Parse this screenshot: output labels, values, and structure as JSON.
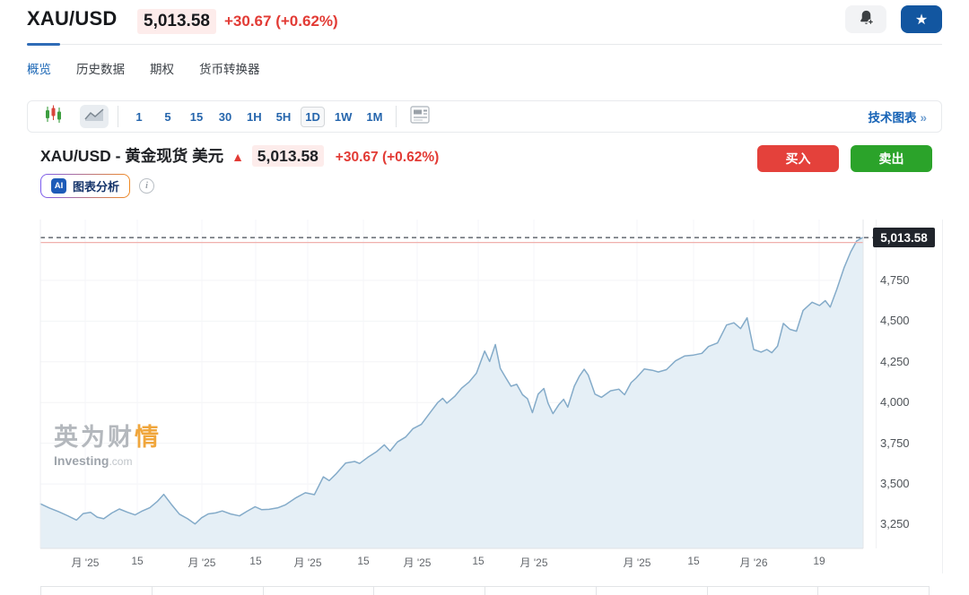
{
  "header": {
    "symbol": "XAU/USD",
    "price": "5,013.58",
    "change": "+30.67",
    "change_pct": "(+0.62%)",
    "star_glyph": "★",
    "accent_blue": "#1256a0",
    "red": "#e23b35"
  },
  "tabs": [
    {
      "label": "概览",
      "active": true
    },
    {
      "label": "历史数据",
      "active": false
    },
    {
      "label": "期权",
      "active": false
    },
    {
      "label": "货币转换器",
      "active": false
    }
  ],
  "toolbar": {
    "timeframes": [
      "1",
      "5",
      "15",
      "30",
      "1H",
      "5H",
      "1D",
      "1W",
      "1M"
    ],
    "selected_timeframe": "1D",
    "tech_chart_label": "技术图表",
    "tech_chart_arrow": "»"
  },
  "chart_header": {
    "title": "XAU/USD - 黄金现货 美元",
    "up_arrow": "▲",
    "price": "5,013.58",
    "change": "+30.67 (+0.62%)",
    "buy_label": "买入",
    "sell_label": "卖出"
  },
  "ai_row": {
    "badge": "AI",
    "label": "图表分析",
    "info_glyph": "i"
  },
  "watermark": {
    "cn_part1": "英为财",
    "cn_part2": "情",
    "en": "Investing",
    "domain": ".com"
  },
  "chart_data": {
    "type": "area",
    "instrument": "XAU/USD",
    "timeframe": "1D",
    "current_price": 5013.58,
    "current_price_label": "5,013.58",
    "prev_close_estimate": 4982.9,
    "ylim": [
      3104,
      5124
    ],
    "grid": true,
    "legend": "none",
    "line_color": "#84abc9",
    "fill_color": "#e4eef5",
    "dashed_line_color": "#454b54",
    "prev_close_line_color": "#f0b0ac",
    "y_ticks": [
      {
        "value": 4750,
        "label": "4,750"
      },
      {
        "value": 4500,
        "label": "4,500"
      },
      {
        "value": 4250,
        "label": "4,250"
      },
      {
        "value": 4000,
        "label": "4,000"
      },
      {
        "value": 3750,
        "label": "3,750"
      },
      {
        "value": 3500,
        "label": "3,500"
      },
      {
        "value": 3250,
        "label": "3,250"
      }
    ],
    "x_ticks": [
      {
        "pos": 0.0545,
        "label": "月 '25"
      },
      {
        "pos": 0.1178,
        "label": "15"
      },
      {
        "pos": 0.1963,
        "label": "月 '25"
      },
      {
        "pos": 0.2617,
        "label": "15"
      },
      {
        "pos": 0.325,
        "label": "月 '25"
      },
      {
        "pos": 0.3926,
        "label": "15"
      },
      {
        "pos": 0.458,
        "label": "月 '25"
      },
      {
        "pos": 0.5322,
        "label": "15"
      },
      {
        "pos": 0.5998,
        "label": "月 '25"
      },
      {
        "pos": 0.7252,
        "label": "月 '25"
      },
      {
        "pos": 0.7939,
        "label": "15"
      },
      {
        "pos": 0.867,
        "label": "月 '26"
      },
      {
        "pos": 0.9466,
        "label": "19"
      }
    ],
    "series": [
      {
        "name": "XAU/USD",
        "points": [
          [
            0.0,
            3378
          ],
          [
            0.011,
            3352
          ],
          [
            0.022,
            3330
          ],
          [
            0.033,
            3305
          ],
          [
            0.044,
            3278
          ],
          [
            0.052,
            3318
          ],
          [
            0.061,
            3326
          ],
          [
            0.069,
            3296
          ],
          [
            0.077,
            3286
          ],
          [
            0.087,
            3322
          ],
          [
            0.096,
            3346
          ],
          [
            0.106,
            3326
          ],
          [
            0.115,
            3310
          ],
          [
            0.123,
            3332
          ],
          [
            0.133,
            3354
          ],
          [
            0.142,
            3392
          ],
          [
            0.15,
            3436
          ],
          [
            0.159,
            3376
          ],
          [
            0.169,
            3314
          ],
          [
            0.179,
            3286
          ],
          [
            0.188,
            3254
          ],
          [
            0.196,
            3292
          ],
          [
            0.204,
            3316
          ],
          [
            0.213,
            3322
          ],
          [
            0.221,
            3334
          ],
          [
            0.231,
            3316
          ],
          [
            0.242,
            3304
          ],
          [
            0.251,
            3332
          ],
          [
            0.261,
            3360
          ],
          [
            0.269,
            3342
          ],
          [
            0.278,
            3344
          ],
          [
            0.289,
            3354
          ],
          [
            0.298,
            3372
          ],
          [
            0.311,
            3416
          ],
          [
            0.322,
            3446
          ],
          [
            0.333,
            3434
          ],
          [
            0.344,
            3544
          ],
          [
            0.351,
            3520
          ],
          [
            0.359,
            3560
          ],
          [
            0.371,
            3628
          ],
          [
            0.382,
            3638
          ],
          [
            0.388,
            3626
          ],
          [
            0.398,
            3664
          ],
          [
            0.409,
            3700
          ],
          [
            0.418,
            3740
          ],
          [
            0.425,
            3702
          ],
          [
            0.434,
            3758
          ],
          [
            0.444,
            3788
          ],
          [
            0.453,
            3840
          ],
          [
            0.463,
            3866
          ],
          [
            0.474,
            3940
          ],
          [
            0.483,
            4000
          ],
          [
            0.489,
            4026
          ],
          [
            0.494,
            3996
          ],
          [
            0.504,
            4040
          ],
          [
            0.512,
            4088
          ],
          [
            0.521,
            4126
          ],
          [
            0.53,
            4180
          ],
          [
            0.54,
            4316
          ],
          [
            0.546,
            4252
          ],
          [
            0.553,
            4356
          ],
          [
            0.559,
            4210
          ],
          [
            0.565,
            4158
          ],
          [
            0.572,
            4100
          ],
          [
            0.579,
            4112
          ],
          [
            0.586,
            4048
          ],
          [
            0.592,
            4024
          ],
          [
            0.598,
            3938
          ],
          [
            0.605,
            4052
          ],
          [
            0.612,
            4086
          ],
          [
            0.617,
            3996
          ],
          [
            0.623,
            3932
          ],
          [
            0.63,
            3986
          ],
          [
            0.636,
            4020
          ],
          [
            0.641,
            3972
          ],
          [
            0.649,
            4100
          ],
          [
            0.655,
            4160
          ],
          [
            0.661,
            4204
          ],
          [
            0.666,
            4168
          ],
          [
            0.674,
            4052
          ],
          [
            0.682,
            4032
          ],
          [
            0.693,
            4072
          ],
          [
            0.703,
            4082
          ],
          [
            0.71,
            4048
          ],
          [
            0.718,
            4122
          ],
          [
            0.724,
            4150
          ],
          [
            0.734,
            4206
          ],
          [
            0.744,
            4198
          ],
          [
            0.751,
            4188
          ],
          [
            0.761,
            4202
          ],
          [
            0.772,
            4256
          ],
          [
            0.783,
            4286
          ],
          [
            0.794,
            4292
          ],
          [
            0.804,
            4302
          ],
          [
            0.812,
            4344
          ],
          [
            0.823,
            4366
          ],
          [
            0.834,
            4476
          ],
          [
            0.843,
            4490
          ],
          [
            0.851,
            4454
          ],
          [
            0.859,
            4520
          ],
          [
            0.867,
            4326
          ],
          [
            0.876,
            4310
          ],
          [
            0.883,
            4326
          ],
          [
            0.889,
            4306
          ],
          [
            0.896,
            4346
          ],
          [
            0.903,
            4486
          ],
          [
            0.911,
            4450
          ],
          [
            0.919,
            4438
          ],
          [
            0.927,
            4566
          ],
          [
            0.938,
            4616
          ],
          [
            0.947,
            4596
          ],
          [
            0.954,
            4626
          ],
          [
            0.96,
            4586
          ],
          [
            0.968,
            4696
          ],
          [
            0.977,
            4830
          ],
          [
            0.985,
            4926
          ],
          [
            0.992,
            4992
          ],
          [
            0.998,
            5010
          ],
          [
            1.0,
            5013.58
          ]
        ]
      }
    ]
  },
  "bottom_table": {
    "column_count": 8
  }
}
